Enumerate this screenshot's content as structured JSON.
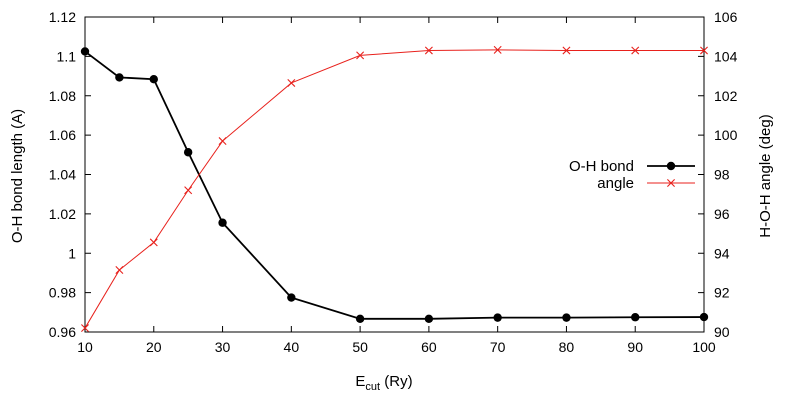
{
  "chart_data": {
    "type": "line",
    "x": [
      10,
      15,
      20,
      25,
      30,
      40,
      50,
      60,
      70,
      80,
      90,
      100
    ],
    "xlim": [
      10,
      100
    ],
    "xticks": [
      10,
      20,
      30,
      40,
      50,
      60,
      70,
      80,
      90,
      100
    ],
    "xlabel": {
      "base": "E",
      "sub": "cut",
      "rest": " (Ry)"
    },
    "ylabel_left": "O-H bond length (A)",
    "ylabel_right": "H-O-H angle (deg)",
    "ylim_left": [
      0.96,
      1.12
    ],
    "yticks_left": [
      "0.96",
      "0.98",
      "1",
      "1.02",
      "1.04",
      "1.06",
      "1.08",
      "1.1",
      "1.12"
    ],
    "ylim_right": [
      90,
      106
    ],
    "yticks_right": [
      "90",
      "92",
      "94",
      "96",
      "98",
      "100",
      "102",
      "104",
      "106"
    ],
    "legend_placement": "right-middle",
    "grid": false,
    "series": [
      {
        "name": "O-H bond",
        "axis": "left",
        "color": "#000000",
        "marker": "circle",
        "values": [
          1.1025,
          1.0893,
          1.0884,
          1.0513,
          1.0155,
          0.9775,
          0.9667,
          0.9667,
          0.9673,
          0.9673,
          0.9675,
          0.9676
        ]
      },
      {
        "name": "angle",
        "axis": "right",
        "color": "#e8211c",
        "marker": "cross",
        "values": [
          90.2,
          93.15,
          94.55,
          97.2,
          99.7,
          102.65,
          104.05,
          104.3,
          104.33,
          104.3,
          104.3,
          104.3
        ]
      }
    ]
  }
}
